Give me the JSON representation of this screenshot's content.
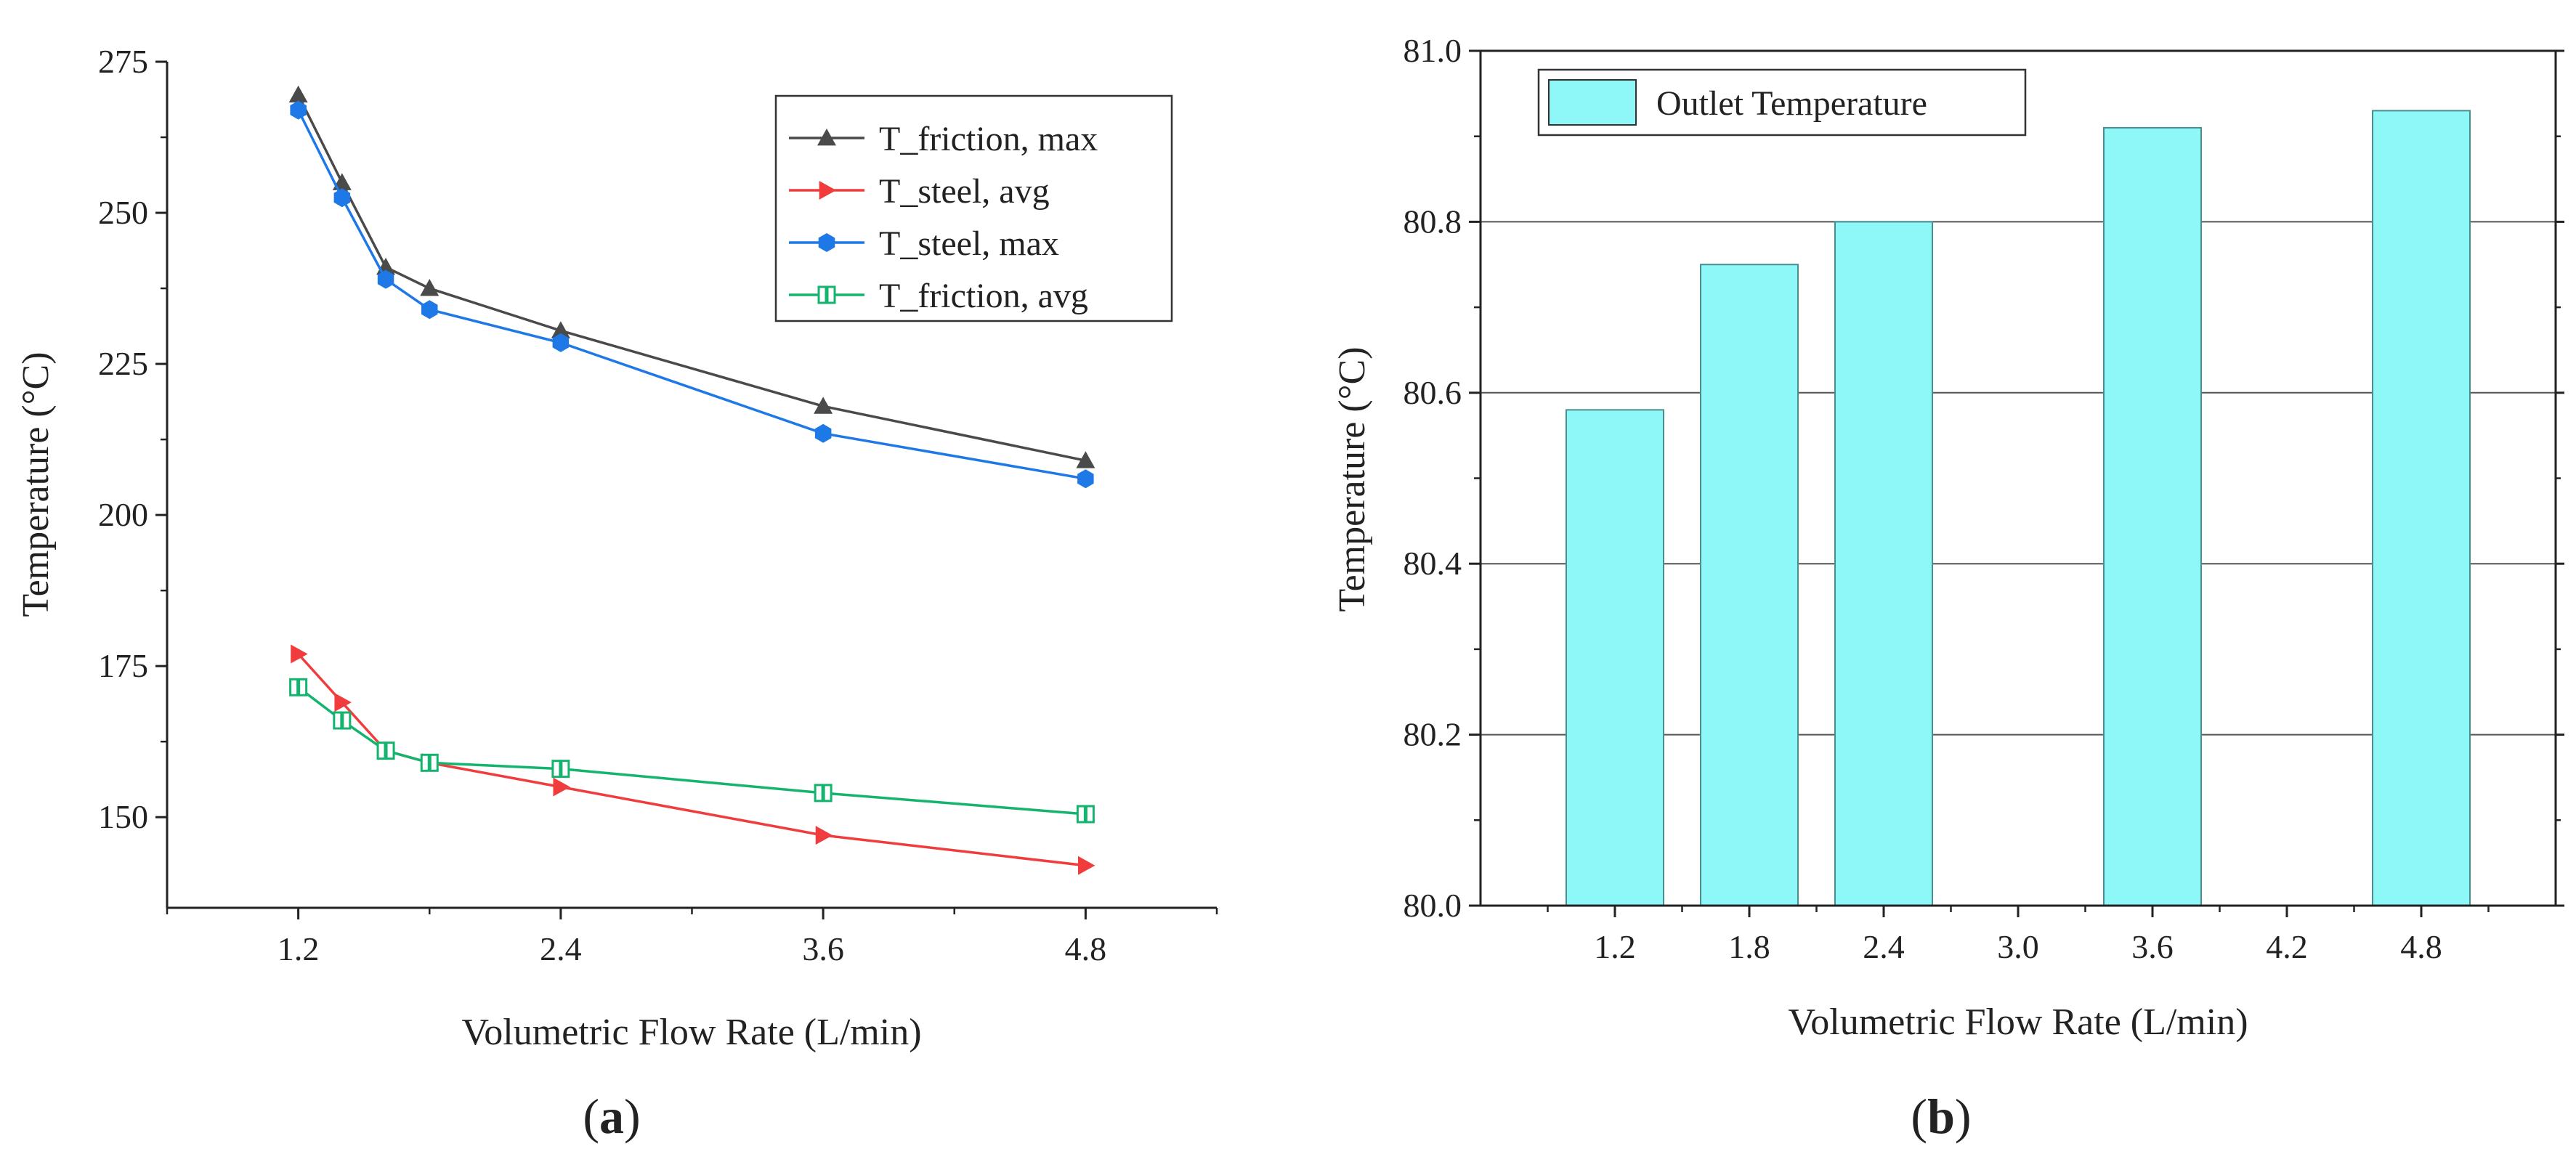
{
  "chart_data": [
    {
      "type": "line",
      "panel_label": "a",
      "xlabel": "Volumetric Flow Rate (L/min)",
      "ylabel": "Temperature (°C)",
      "xlim": [
        0.6,
        5.4
      ],
      "ylim": [
        135,
        275
      ],
      "x_ticks": [
        1.2,
        2.4,
        3.6,
        4.8
      ],
      "y_ticks": [
        150,
        175,
        200,
        225,
        250,
        275
      ],
      "grid": false,
      "legend_position": "top-right",
      "series": [
        {
          "name": "T_friction, max",
          "color": "#4a4a4a",
          "marker": "triangle-up",
          "x": [
            1.2,
            1.4,
            1.6,
            1.8,
            2.4,
            3.6,
            4.8
          ],
          "y": [
            269.5,
            255,
            241,
            237.5,
            230.5,
            218,
            209
          ]
        },
        {
          "name": "T_steel, avg",
          "color": "#f03c3c",
          "marker": "triangle-right",
          "x": [
            1.2,
            1.4,
            1.6,
            1.8,
            2.4,
            3.6,
            4.8
          ],
          "y": [
            177,
            169,
            161,
            159,
            155,
            147,
            142
          ]
        },
        {
          "name": "T_steel, max",
          "color": "#1e78e6",
          "marker": "hexagon",
          "x": [
            1.2,
            1.4,
            1.6,
            1.8,
            2.4,
            3.6,
            4.8
          ],
          "y": [
            267,
            252.5,
            239,
            234,
            228.5,
            213.5,
            206
          ]
        },
        {
          "name": "T_friction, avg",
          "color": "#14b46e",
          "marker": "half-filled-square",
          "x": [
            1.2,
            1.4,
            1.6,
            1.8,
            2.4,
            3.6,
            4.8
          ],
          "y": [
            171.5,
            166,
            161,
            159,
            158,
            154,
            150.5
          ]
        }
      ]
    },
    {
      "type": "bar",
      "panel_label": "b",
      "xlabel": "Volumetric Flow Rate (L/min)",
      "ylabel": "Temperature (°C)",
      "xlim": [
        0.6,
        5.4
      ],
      "ylim": [
        80.0,
        81.0
      ],
      "x_ticks": [
        "1.2",
        "1.8",
        "2.4",
        "3.0",
        "3.6",
        "4.2",
        "4.8"
      ],
      "y_ticks": [
        "80.0",
        "80.2",
        "80.4",
        "80.6",
        "80.8",
        "81.0"
      ],
      "grid": true,
      "legend_position": "top-left",
      "bar_color": "#8ef7f7",
      "series": [
        {
          "name": "Outlet Temperature",
          "x": [
            1.2,
            1.8,
            2.4,
            3.6,
            4.8
          ],
          "values": [
            80.58,
            80.75,
            80.8,
            80.91,
            80.93
          ]
        }
      ]
    }
  ]
}
